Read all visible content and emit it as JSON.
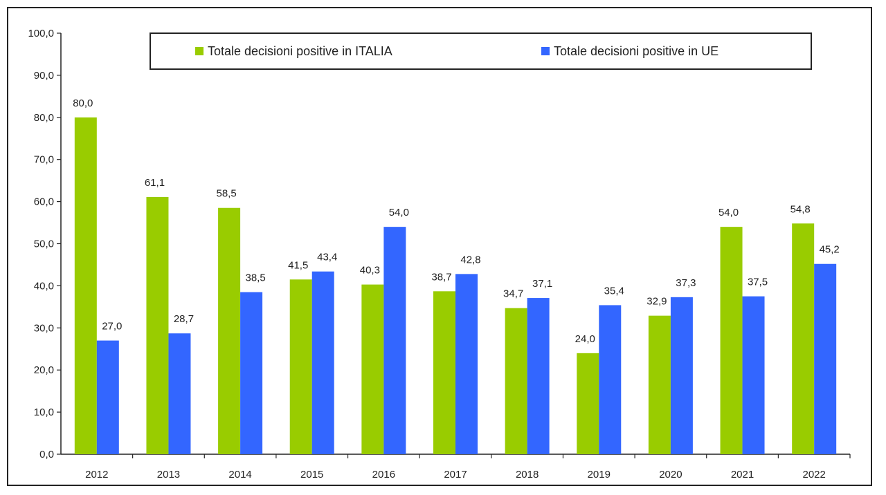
{
  "chart_data": {
    "type": "bar",
    "title": "",
    "xlabel": "",
    "ylabel": "",
    "ylim": [
      0,
      100
    ],
    "yticks": [
      "0,0",
      "10,0",
      "20,0",
      "30,0",
      "40,0",
      "50,0",
      "60,0",
      "70,0",
      "80,0",
      "90,0",
      "100,0"
    ],
    "categories": [
      "2012",
      "2013",
      "2014",
      "2015",
      "2016",
      "2017",
      "2018",
      "2019",
      "2020",
      "2021",
      "2022"
    ],
    "series": [
      {
        "name": "Totale decisioni positive in ITALIA",
        "color": "#99cc00",
        "values": [
          80.0,
          61.1,
          58.5,
          41.5,
          40.3,
          38.7,
          34.7,
          24.0,
          32.9,
          54.0,
          54.8
        ],
        "labels": [
          "80,0",
          "61,1",
          "58,5",
          "41,5",
          "40,3",
          "38,7",
          "34,7",
          "24,0",
          "32,9",
          "54,0",
          "54,8"
        ]
      },
      {
        "name": "Totale decisioni positive in UE",
        "color": "#3366ff",
        "values": [
          27.0,
          28.7,
          38.5,
          43.4,
          54.0,
          42.8,
          37.1,
          35.4,
          37.3,
          37.5,
          45.2
        ],
        "labels": [
          "27,0",
          "28,7",
          "38,5",
          "43,4",
          "54,0",
          "42,8",
          "37,1",
          "35,4",
          "37,3",
          "37,5",
          "45,2"
        ]
      }
    ],
    "legend_position": "top",
    "grid": false
  }
}
